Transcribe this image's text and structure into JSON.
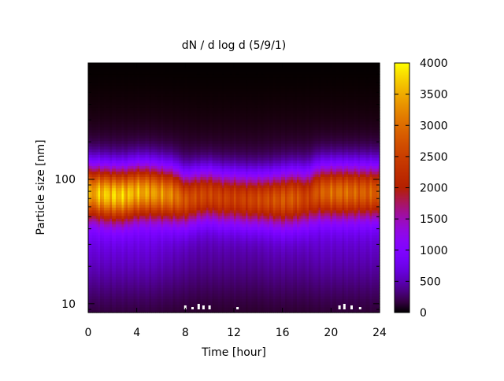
{
  "chart_data": {
    "type": "heatmap",
    "title": "dN / d log d (5/9/1)",
    "xlabel": "Time [hour]",
    "ylabel": "Particle size [nm]",
    "xlim": [
      0,
      24
    ],
    "ylim_nm": [
      8.5,
      860
    ],
    "y_scale": "log",
    "x_ticks": [
      0,
      4,
      8,
      12,
      16,
      20,
      24
    ],
    "x_tick_labels": [
      "0",
      "4",
      "8",
      "12",
      "16",
      "20",
      "24"
    ],
    "y_ticks": [
      10,
      100
    ],
    "y_tick_labels": [
      "10",
      "100"
    ],
    "colorbar": {
      "range": [
        0,
        4000
      ],
      "ticks": [
        0,
        500,
        1000,
        1500,
        2000,
        2500,
        3000,
        3500,
        4000
      ],
      "tick_labels": [
        "0",
        "500",
        "1000",
        "1500",
        "2000",
        "2500",
        "3000",
        "3500",
        "4000"
      ],
      "colormap": "gnuplot-rgbformulae-7-5-15"
    },
    "grid": false,
    "time_hours": [
      0,
      1,
      2,
      3,
      4,
      5,
      6,
      7,
      8,
      9,
      10,
      11,
      12,
      13,
      14,
      15,
      16,
      17,
      18,
      19,
      20,
      21,
      22,
      23,
      24
    ],
    "peak_diameter_nm": [
      80,
      78,
      76,
      76,
      80,
      80,
      78,
      76,
      70,
      74,
      76,
      72,
      72,
      70,
      70,
      70,
      70,
      72,
      72,
      80,
      80,
      80,
      80,
      80,
      80
    ],
    "peak_concentration": [
      2800,
      3100,
      3150,
      3100,
      3000,
      2900,
      2800,
      2700,
      2250,
      2200,
      2150,
      2100,
      2050,
      2100,
      2150,
      2200,
      2300,
      2350,
      2000,
      2350,
      2500,
      2550,
      2450,
      2400,
      2400
    ],
    "log_width": [
      0.21,
      0.21,
      0.21,
      0.21,
      0.21,
      0.21,
      0.21,
      0.21,
      0.2,
      0.2,
      0.2,
      0.2,
      0.2,
      0.2,
      0.2,
      0.2,
      0.21,
      0.21,
      0.21,
      0.21,
      0.21,
      0.21,
      0.21,
      0.21,
      0.21
    ],
    "background_concentration": [
      700,
      700,
      700,
      700,
      700,
      700,
      650,
      600,
      550,
      500,
      500,
      500,
      500,
      500,
      500,
      550,
      550,
      550,
      550,
      600,
      600,
      600,
      600,
      600,
      600
    ]
  }
}
